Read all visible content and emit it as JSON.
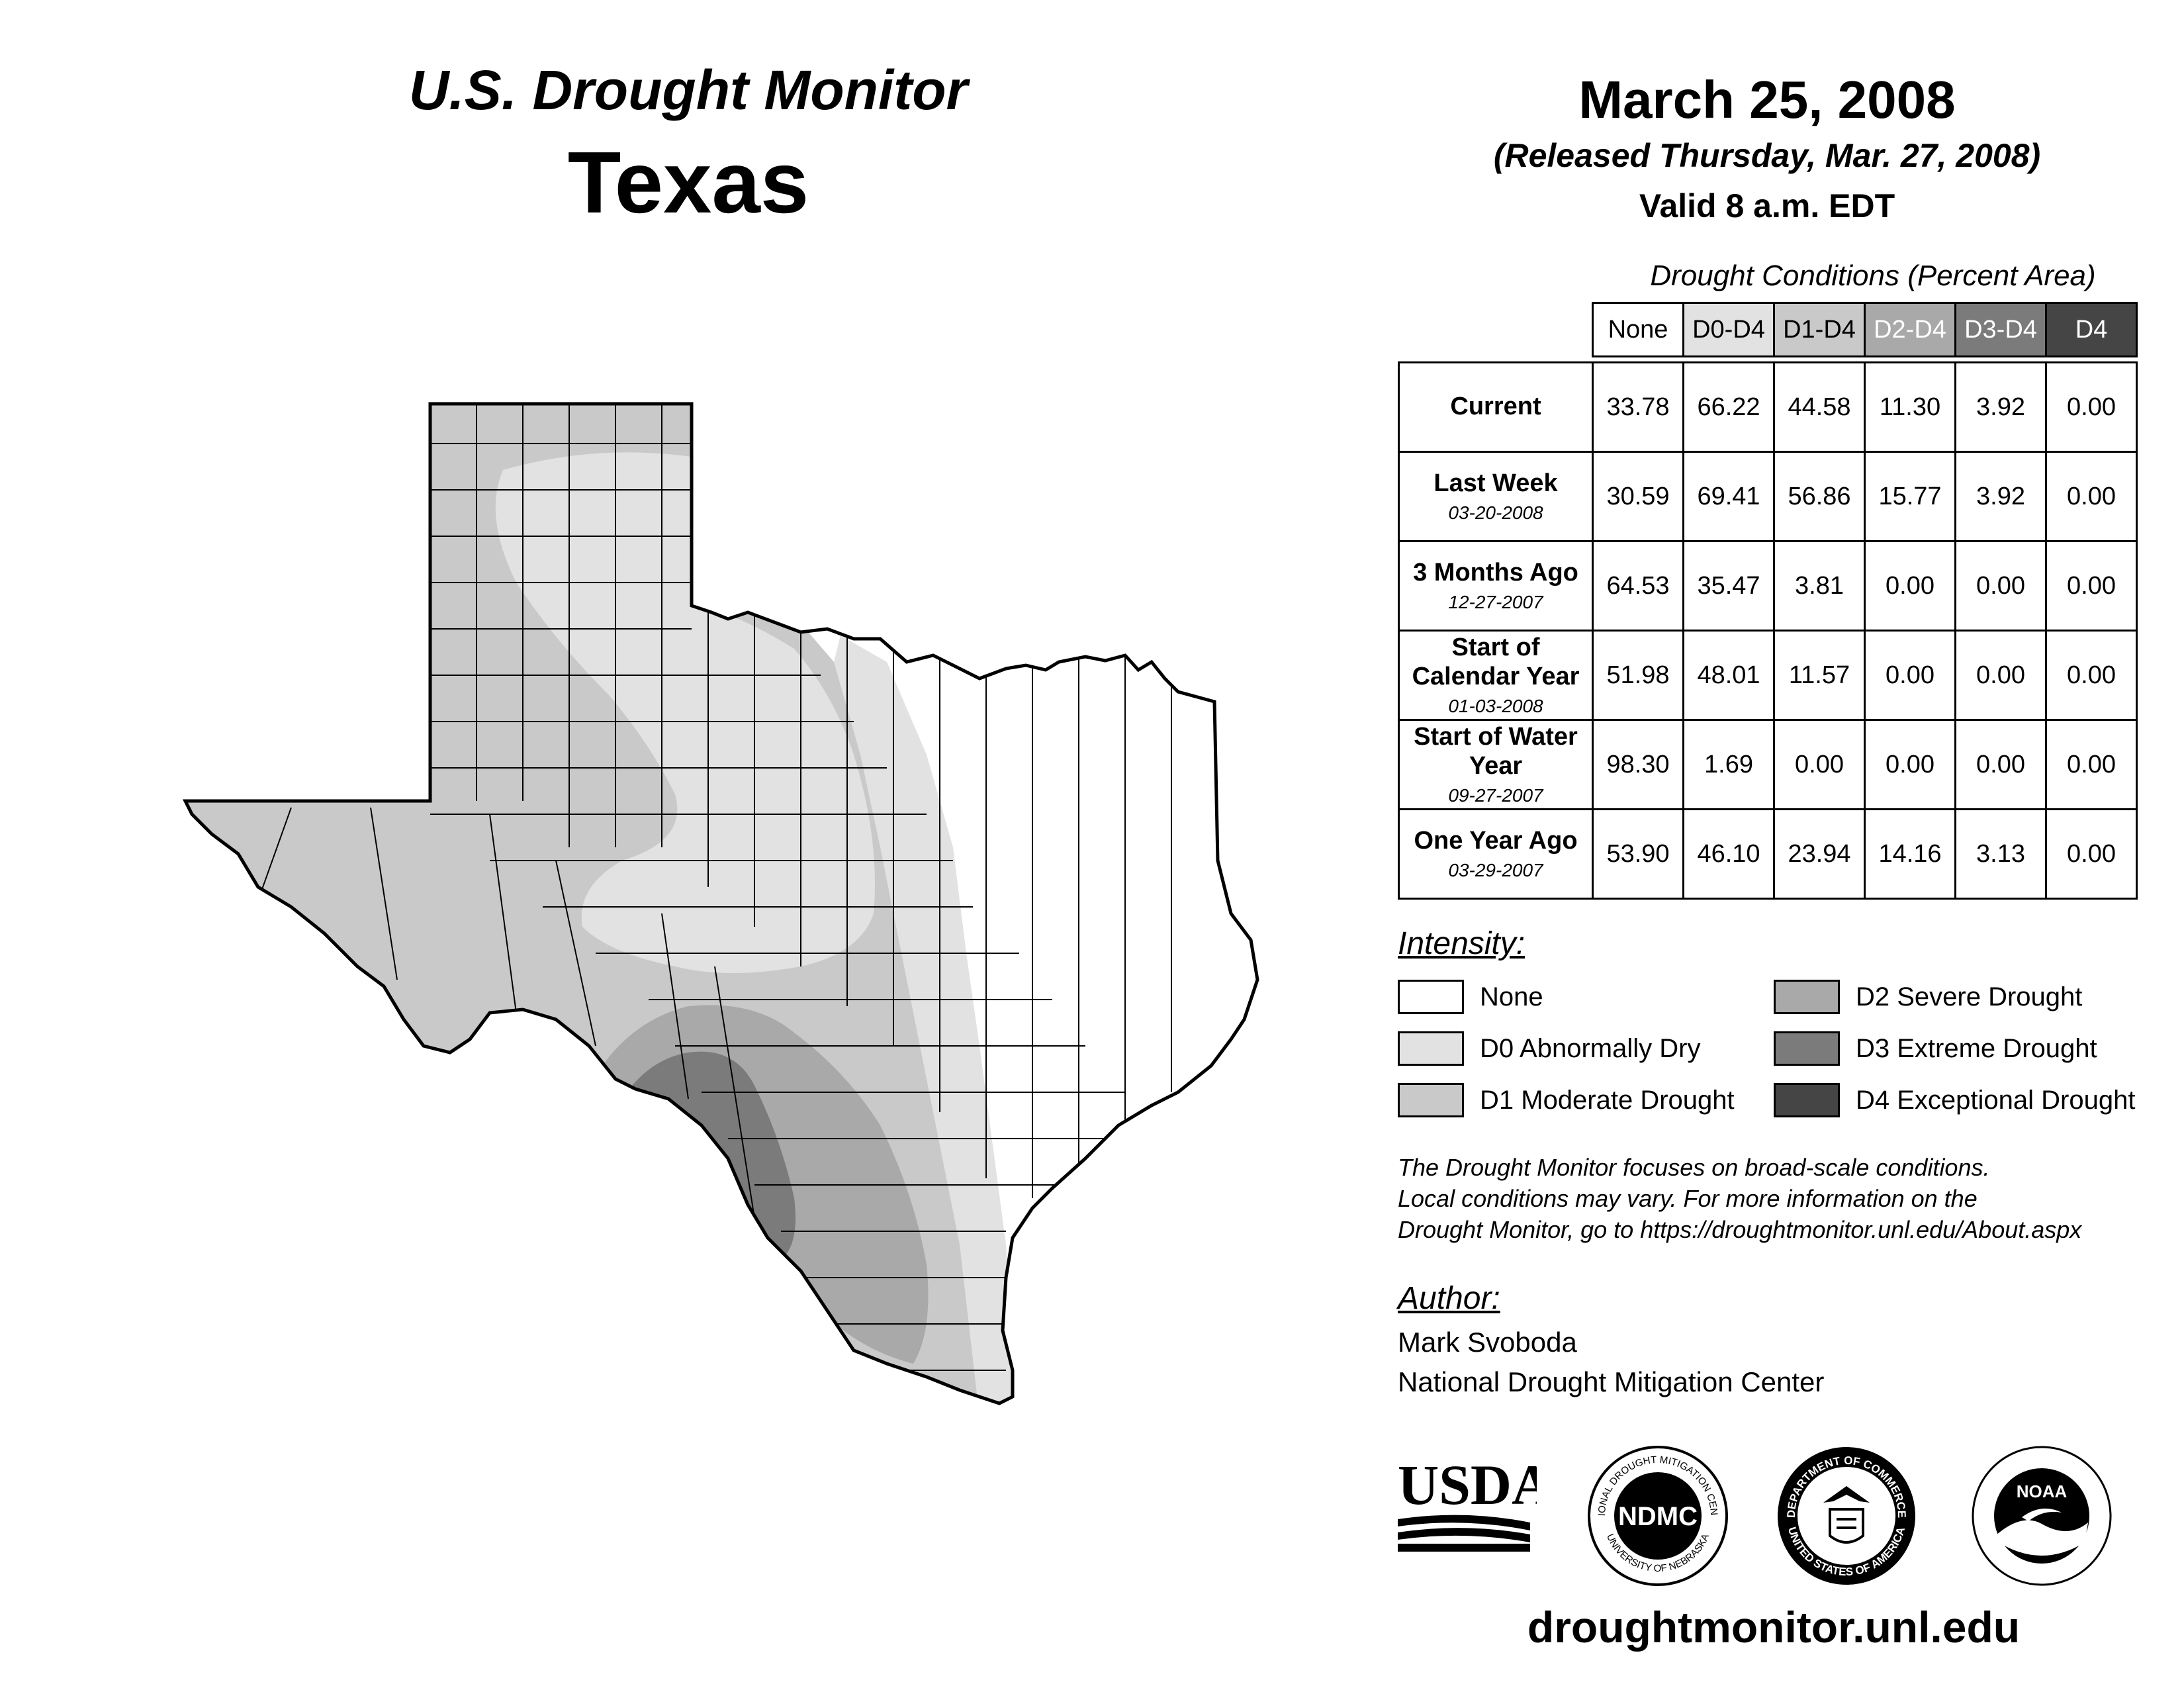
{
  "header": {
    "title": "U.S. Drought Monitor",
    "state": "Texas",
    "date": "March 25, 2008",
    "released": "(Released Thursday, Mar. 27, 2008)",
    "valid": "Valid 8 a.m. EDT"
  },
  "table": {
    "caption": "Drought Conditions (Percent Area)",
    "columns": [
      "None",
      "D0-D4",
      "D1-D4",
      "D2-D4",
      "D3-D4",
      "D4"
    ],
    "rows": [
      {
        "label": "Current",
        "sub": "",
        "values": [
          "33.78",
          "66.22",
          "44.58",
          "11.30",
          "3.92",
          "0.00"
        ]
      },
      {
        "label": "Last Week",
        "sub": "03-20-2008",
        "values": [
          "30.59",
          "69.41",
          "56.86",
          "15.77",
          "3.92",
          "0.00"
        ]
      },
      {
        "label": "3 Months Ago",
        "sub": "12-27-2007",
        "values": [
          "64.53",
          "35.47",
          "3.81",
          "0.00",
          "0.00",
          "0.00"
        ]
      },
      {
        "label": "Start of Calendar Year",
        "sub": "01-03-2008",
        "values": [
          "51.98",
          "48.01",
          "11.57",
          "0.00",
          "0.00",
          "0.00"
        ]
      },
      {
        "label": "Start of Water Year",
        "sub": "09-27-2007",
        "values": [
          "98.30",
          "1.69",
          "0.00",
          "0.00",
          "0.00",
          "0.00"
        ]
      },
      {
        "label": "One Year Ago",
        "sub": "03-29-2007",
        "values": [
          "53.90",
          "46.10",
          "23.94",
          "14.16",
          "3.13",
          "0.00"
        ]
      }
    ]
  },
  "legend": {
    "title": "Intensity:",
    "items": [
      {
        "label": "None",
        "color": "#ffffff"
      },
      {
        "label": "D0 Abnormally Dry",
        "color": "#e2e2e2"
      },
      {
        "label": "D1 Moderate Drought",
        "color": "#c9c9c9"
      },
      {
        "label": "D2 Severe Drought",
        "color": "#a9a9a9"
      },
      {
        "label": "D3 Extreme Drought",
        "color": "#7b7b7b"
      },
      {
        "label": "D4 Exceptional Drought",
        "color": "#454545"
      }
    ]
  },
  "note": {
    "line1": "The Drought Monitor focuses on broad-scale conditions.",
    "line2": "Local conditions may vary. For more information on the",
    "line3": "Drought Monitor, go to https://droughtmonitor.unl.edu/About.aspx"
  },
  "author": {
    "title": "Author:",
    "name": "Mark Svoboda",
    "org": "National Drought Mitigation Center"
  },
  "logos": {
    "usda": "USDA",
    "ndmc": "NDMC",
    "ndmc_ring_top": "NATIONAL DROUGHT MITIGATION CENTER",
    "ndmc_ring_bottom": "UNIVERSITY OF NEBRASKA",
    "doc_ring_top": "DEPARTMENT OF COMMERCE",
    "doc_ring_bottom": "UNITED STATES OF AMERICA",
    "noaa": "NOAA"
  },
  "website": "droughtmonitor.unl.edu"
}
